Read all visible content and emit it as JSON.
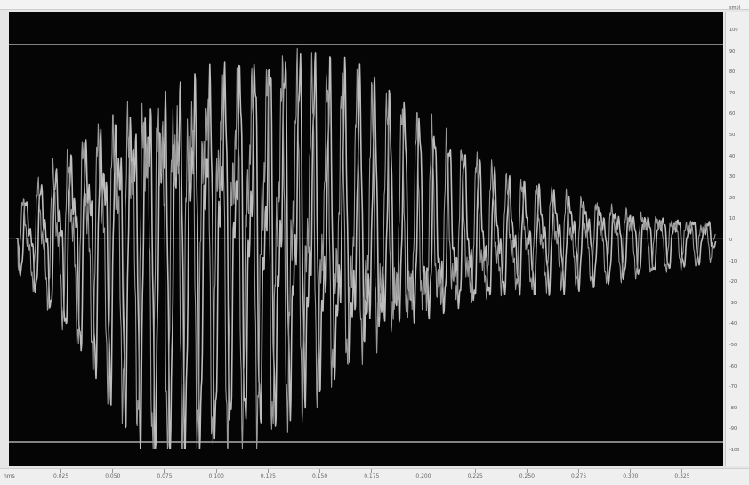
{
  "ruler": {
    "unit_label": "smpl",
    "y_ticks": [
      "100",
      "90",
      "80",
      "70",
      "60",
      "50",
      "40",
      "30",
      "20",
      "10",
      "0",
      "-10",
      "-20",
      "-30",
      "-40",
      "-50",
      "-60",
      "-70",
      "-80",
      "-90",
      "-100"
    ]
  },
  "time_axis": {
    "unit_label": "hms",
    "ticks": [
      "0.025",
      "0.050",
      "0.075",
      "0.100",
      "0.125",
      "0.150",
      "0.175",
      "0.200",
      "0.225",
      "0.250",
      "0.275",
      "0.300",
      "0.325"
    ]
  },
  "colors": {
    "background": "#050505",
    "waveform": "#bdbdbd",
    "limit_lines": "#cfcfcf"
  }
}
